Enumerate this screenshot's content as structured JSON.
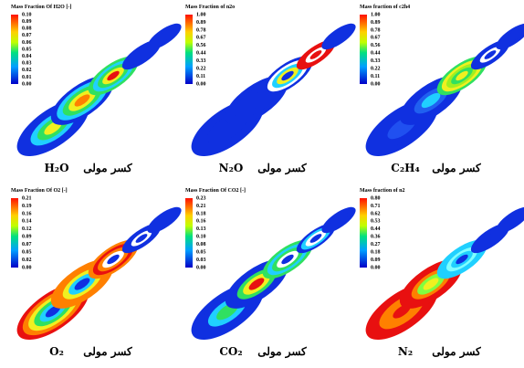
{
  "panels": [
    {
      "title": "Mass Fraction Of H2O [-]",
      "ticks": [
        "0.10",
        "0.09",
        "0.08",
        "0.07",
        "0.06",
        "0.05",
        "0.04",
        "0.03",
        "0.02",
        "0.01",
        "0.00"
      ],
      "species": "H₂O",
      "label": "کسر مولی"
    },
    {
      "title": "Mass Fraction of n2o",
      "ticks": [
        "1.00",
        "0.89",
        "0.78",
        "0.67",
        "0.56",
        "0.44",
        "0.33",
        "0.22",
        "0.11",
        "0.00"
      ],
      "species": "N₂O",
      "label": "کسر مولی"
    },
    {
      "title": "Mass fraction of c2h4",
      "ticks": [
        "1.00",
        "0.89",
        "0.78",
        "0.67",
        "0.56",
        "0.44",
        "0.33",
        "0.22",
        "0.11",
        "0.00"
      ],
      "species": "C₂H₄",
      "label": "کسر مولی"
    },
    {
      "title": "Mass Fraction Of O2 [-]",
      "ticks": [
        "0.21",
        "0.19",
        "0.16",
        "0.14",
        "0.12",
        "0.09",
        "0.07",
        "0.05",
        "0.02",
        "0.00"
      ],
      "species": "O₂",
      "label": "کسر مولی"
    },
    {
      "title": "Mass Fraction Of CO2 [-]",
      "ticks": [
        "0.23",
        "0.21",
        "0.18",
        "0.16",
        "0.13",
        "0.10",
        "0.08",
        "0.05",
        "0.03",
        "0.00"
      ],
      "species": "CO₂",
      "label": "کسر مولی"
    },
    {
      "title": "Mass fraction of n2",
      "ticks": [
        "0.80",
        "0.71",
        "0.62",
        "0.53",
        "0.44",
        "0.36",
        "0.27",
        "0.18",
        "0.09",
        "0.00"
      ],
      "species": "N₂",
      "label": "کسر مولی"
    }
  ]
}
